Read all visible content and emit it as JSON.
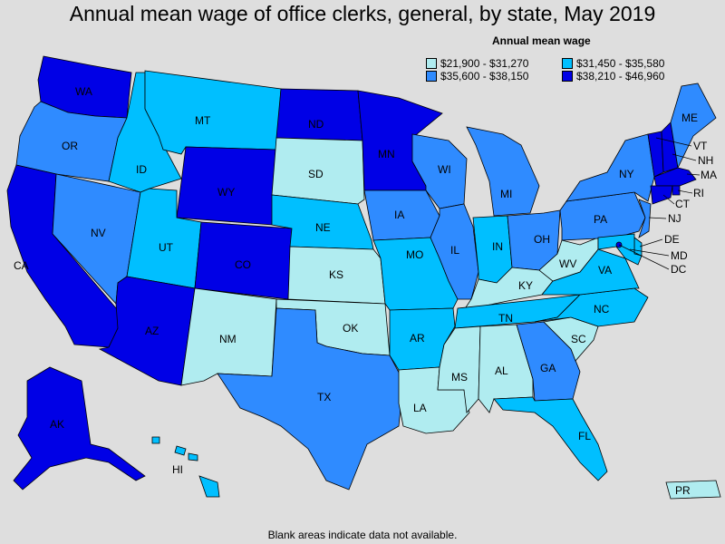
{
  "title": "Annual mean wage of office clerks, general, by state, May 2019",
  "legend": {
    "title": "Annual mean wage",
    "items": [
      {
        "label": "$21,900 - $31,270",
        "color": "#b0ecf0"
      },
      {
        "label": "$31,450 - $35,580",
        "color": "#00bfff"
      },
      {
        "label": "$35,600 - $38,150",
        "color": "#2f8bff"
      },
      {
        "label": "$38,210 - $46,960",
        "color": "#0000e6"
      }
    ]
  },
  "footnote": "Blank areas indicate data not available.",
  "states": {
    "WA": {
      "label": "WA",
      "bin": 3
    },
    "OR": {
      "label": "OR",
      "bin": 2
    },
    "CA": {
      "label": "CA",
      "bin": 3
    },
    "NV": {
      "label": "NV",
      "bin": 2
    },
    "ID": {
      "label": "ID",
      "bin": 1
    },
    "MT": {
      "label": "MT",
      "bin": 1
    },
    "WY": {
      "label": "WY",
      "bin": 3
    },
    "UT": {
      "label": "UT",
      "bin": 1
    },
    "AZ": {
      "label": "AZ",
      "bin": 3
    },
    "CO": {
      "label": "CO",
      "bin": 3
    },
    "NM": {
      "label": "NM",
      "bin": 0
    },
    "ND": {
      "label": "ND",
      "bin": 3
    },
    "SD": {
      "label": "SD",
      "bin": 0
    },
    "NE": {
      "label": "NE",
      "bin": 1
    },
    "KS": {
      "label": "KS",
      "bin": 0
    },
    "OK": {
      "label": "OK",
      "bin": 0
    },
    "TX": {
      "label": "TX",
      "bin": 2
    },
    "MN": {
      "label": "MN",
      "bin": 3
    },
    "IA": {
      "label": "IA",
      "bin": 2
    },
    "MO": {
      "label": "MO",
      "bin": 1
    },
    "AR": {
      "label": "AR",
      "bin": 1
    },
    "LA": {
      "label": "LA",
      "bin": 0
    },
    "WI": {
      "label": "WI",
      "bin": 2
    },
    "IL": {
      "label": "IL",
      "bin": 2
    },
    "MI": {
      "label": "MI",
      "bin": 2
    },
    "IN": {
      "label": "IN",
      "bin": 1
    },
    "OH": {
      "label": "OH",
      "bin": 2
    },
    "KY": {
      "label": "KY",
      "bin": 0
    },
    "TN": {
      "label": "TN",
      "bin": 1
    },
    "MS": {
      "label": "MS",
      "bin": 0
    },
    "AL": {
      "label": "AL",
      "bin": 0
    },
    "GA": {
      "label": "GA",
      "bin": 2
    },
    "FL": {
      "label": "FL",
      "bin": 1
    },
    "SC": {
      "label": "SC",
      "bin": 0
    },
    "NC": {
      "label": "NC",
      "bin": 1
    },
    "VA": {
      "label": "VA",
      "bin": 1
    },
    "WV": {
      "label": "WV",
      "bin": 0
    },
    "PA": {
      "label": "PA",
      "bin": 2
    },
    "NY": {
      "label": "NY",
      "bin": 2
    },
    "ME": {
      "label": "ME",
      "bin": 2
    },
    "VT": {
      "label": "VT",
      "bin": 3
    },
    "NH": {
      "label": "NH",
      "bin": 3
    },
    "MA": {
      "label": "MA",
      "bin": 3
    },
    "RI": {
      "label": "RI",
      "bin": 3
    },
    "CT": {
      "label": "CT",
      "bin": 3
    },
    "NJ": {
      "label": "NJ",
      "bin": 2
    },
    "DE": {
      "label": "DE",
      "bin": 1
    },
    "MD": {
      "label": "MD",
      "bin": 1
    },
    "DC": {
      "label": "DC",
      "bin": 3
    },
    "AK": {
      "label": "AK",
      "bin": 3
    },
    "HI": {
      "label": "HI",
      "bin": 1
    },
    "PR": {
      "label": "PR",
      "bin": 0
    }
  }
}
